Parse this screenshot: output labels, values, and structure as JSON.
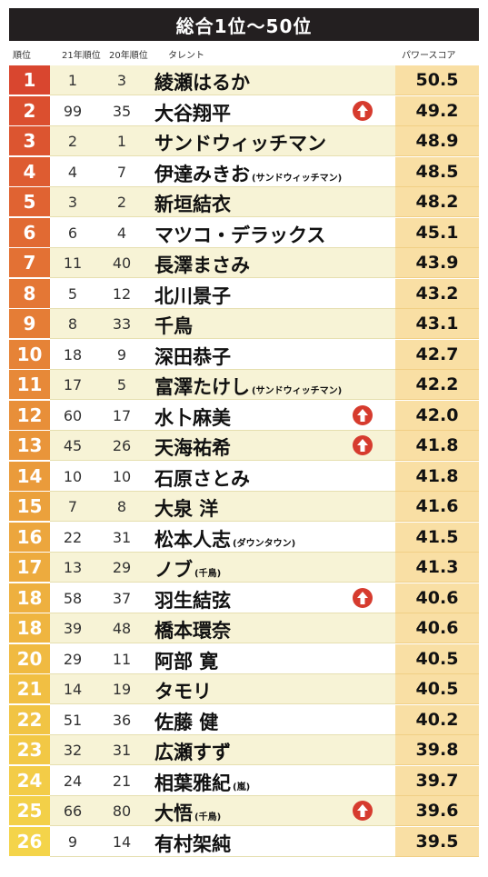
{
  "title": "総合1位～50位",
  "headers": {
    "rank": "順位",
    "y21": "21年順位",
    "y20": "20年順位",
    "talent": "タレント",
    "score": "パワースコア"
  },
  "rows": [
    {
      "rank": "1",
      "y21": "1",
      "y20": "3",
      "name": "綾瀬はるか",
      "note": "",
      "score": "50.5",
      "up": false,
      "color": "#d9462f"
    },
    {
      "rank": "2",
      "y21": "99",
      "y20": "35",
      "name": "大谷翔平",
      "note": "",
      "score": "49.2",
      "up": true,
      "color": "#db4f2f"
    },
    {
      "rank": "3",
      "y21": "2",
      "y20": "1",
      "name": "サンドウィッチマン",
      "note": "",
      "score": "48.9",
      "up": false,
      "color": "#dc5530"
    },
    {
      "rank": "4",
      "y21": "4",
      "y20": "7",
      "name": "伊達みきお",
      "note": "(サンドウィッチマン)",
      "score": "48.5",
      "up": false,
      "color": "#de5c31"
    },
    {
      "rank": "5",
      "y21": "3",
      "y20": "2",
      "name": "新垣結衣",
      "note": "",
      "score": "48.2",
      "up": false,
      "color": "#e06332"
    },
    {
      "rank": "6",
      "y21": "6",
      "y20": "4",
      "name": "マツコ・デラックス",
      "note": "",
      "score": "45.1",
      "up": false,
      "color": "#e16a33"
    },
    {
      "rank": "7",
      "y21": "11",
      "y20": "40",
      "name": "長澤まさみ",
      "note": "",
      "score": "43.9",
      "up": false,
      "color": "#e37134"
    },
    {
      "rank": "8",
      "y21": "5",
      "y20": "12",
      "name": "北川景子",
      "note": "",
      "score": "43.2",
      "up": false,
      "color": "#e47735"
    },
    {
      "rank": "9",
      "y21": "8",
      "y20": "33",
      "name": "千鳥",
      "note": "",
      "score": "43.1",
      "up": false,
      "color": "#e57d36"
    },
    {
      "rank": "10",
      "y21": "18",
      "y20": "9",
      "name": "深田恭子",
      "note": "",
      "score": "42.7",
      "up": false,
      "color": "#e68337"
    },
    {
      "rank": "11",
      "y21": "17",
      "y20": "5",
      "name": "富澤たけし",
      "note": "(サンドウィッチマン)",
      "score": "42.2",
      "up": false,
      "color": "#e78938"
    },
    {
      "rank": "12",
      "y21": "60",
      "y20": "17",
      "name": "水卜麻美",
      "note": "",
      "score": "42.0",
      "up": true,
      "color": "#e88f39"
    },
    {
      "rank": "13",
      "y21": "45",
      "y20": "26",
      "name": "天海祐希",
      "note": "",
      "score": "41.8",
      "up": true,
      "color": "#e9953a"
    },
    {
      "rank": "14",
      "y21": "10",
      "y20": "10",
      "name": "石原さとみ",
      "note": "",
      "score": "41.8",
      "up": false,
      "color": "#ea9b3b"
    },
    {
      "rank": "15",
      "y21": "7",
      "y20": "8",
      "name": "大泉 洋",
      "note": "",
      "score": "41.6",
      "up": false,
      "color": "#eba13c"
    },
    {
      "rank": "16",
      "y21": "22",
      "y20": "31",
      "name": "松本人志",
      "note": "(ダウンタウン)",
      "score": "41.5",
      "up": false,
      "color": "#eca63d"
    },
    {
      "rank": "17",
      "y21": "13",
      "y20": "29",
      "name": "ノブ",
      "note": "(千鳥)",
      "score": "41.3",
      "up": false,
      "color": "#edab3e"
    },
    {
      "rank": "18",
      "y21": "58",
      "y20": "37",
      "name": "羽生結弦",
      "note": "",
      "score": "40.6",
      "up": true,
      "color": "#eeb03f"
    },
    {
      "rank": "18",
      "y21": "39",
      "y20": "48",
      "name": "橋本環奈",
      "note": "",
      "score": "40.6",
      "up": false,
      "color": "#efb540"
    },
    {
      "rank": "20",
      "y21": "29",
      "y20": "11",
      "name": "阿部 寛",
      "note": "",
      "score": "40.5",
      "up": false,
      "color": "#f0ba41"
    },
    {
      "rank": "21",
      "y21": "14",
      "y20": "19",
      "name": "タモリ",
      "note": "",
      "score": "40.5",
      "up": false,
      "color": "#f1bf43"
    },
    {
      "rank": "22",
      "y21": "51",
      "y20": "36",
      "name": "佐藤 健",
      "note": "",
      "score": "40.2",
      "up": false,
      "color": "#f1c444"
    },
    {
      "rank": "23",
      "y21": "32",
      "y20": "31",
      "name": "広瀬すず",
      "note": "",
      "score": "39.8",
      "up": false,
      "color": "#f2c845"
    },
    {
      "rank": "24",
      "y21": "24",
      "y20": "21",
      "name": "相葉雅紀",
      "note": "(嵐)",
      "score": "39.7",
      "up": false,
      "color": "#f3cc47"
    },
    {
      "rank": "25",
      "y21": "66",
      "y20": "80",
      "name": "大悟",
      "note": "(千鳥)",
      "score": "39.6",
      "up": true,
      "color": "#f3d048"
    },
    {
      "rank": "26",
      "y21": "9",
      "y20": "14",
      "name": "有村架純",
      "note": "",
      "score": "39.5",
      "up": false,
      "color": "#f4d44a"
    }
  ]
}
